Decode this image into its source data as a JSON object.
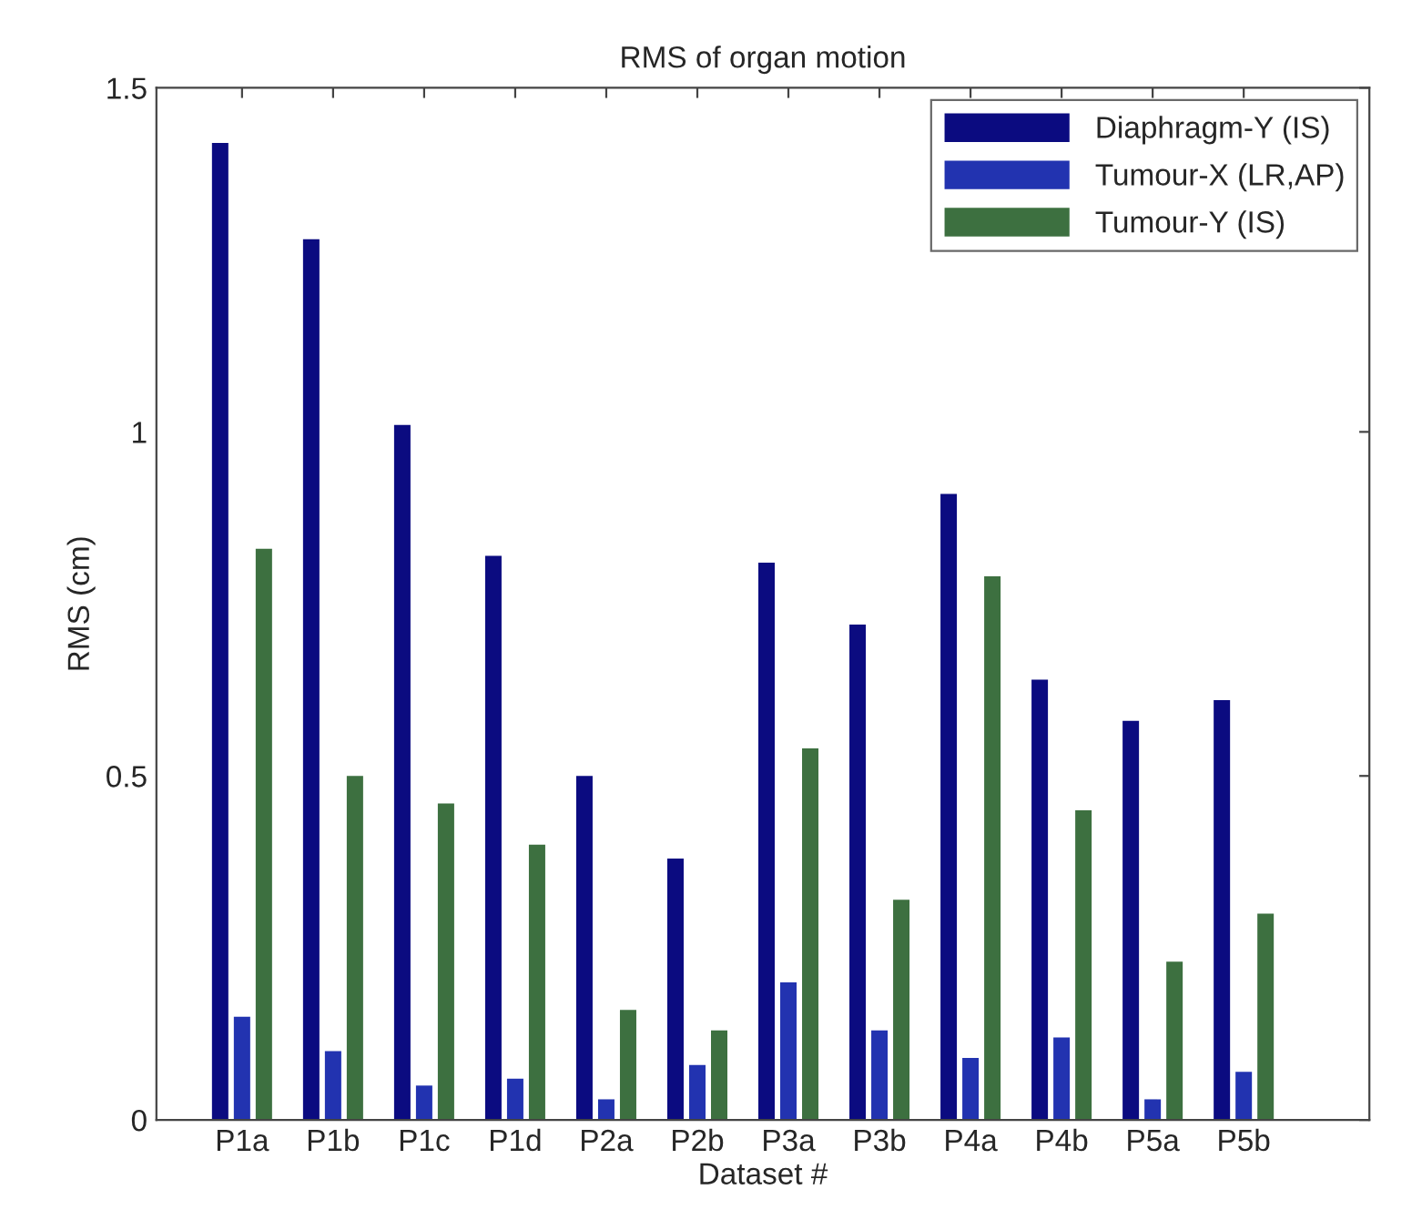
{
  "chart_data": {
    "type": "bar",
    "title": "RMS of organ motion",
    "xlabel": "Dataset #",
    "ylabel": "RMS (cm)",
    "categories": [
      "P1a",
      "P1b",
      "P1c",
      "P1d",
      "P2a",
      "P2b",
      "P3a",
      "P3b",
      "P4a",
      "P4b",
      "P5a",
      "P5b"
    ],
    "series": [
      {
        "name": "Diaphragm-Y (IS)",
        "color": "#0b0b80",
        "values": [
          1.42,
          1.28,
          1.01,
          0.82,
          0.5,
          0.38,
          0.81,
          0.72,
          0.91,
          0.64,
          0.58,
          0.61
        ]
      },
      {
        "name": "Tumour-X (LR,AP)",
        "color": "#2233b0",
        "values": [
          0.15,
          0.1,
          0.05,
          0.06,
          0.03,
          0.08,
          0.2,
          0.13,
          0.09,
          0.12,
          0.03,
          0.07
        ]
      },
      {
        "name": "Tumour-Y (IS)",
        "color": "#3d7040",
        "values": [
          0.83,
          0.5,
          0.46,
          0.4,
          0.16,
          0.13,
          0.54,
          0.32,
          0.79,
          0.45,
          0.23,
          0.3
        ]
      }
    ],
    "ylim": [
      0,
      1.5
    ],
    "yticks": [
      0,
      0.5,
      1,
      1.5
    ],
    "grid": false,
    "legend": "top right"
  }
}
